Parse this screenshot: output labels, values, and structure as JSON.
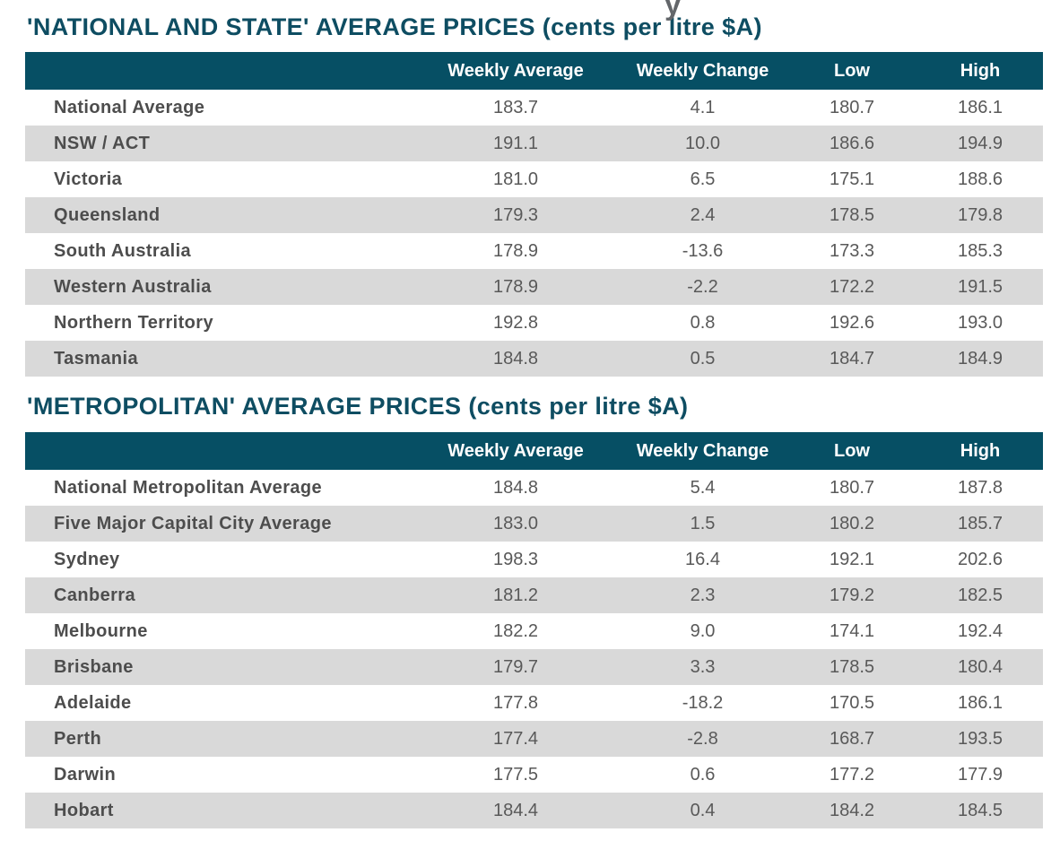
{
  "page": {
    "cut_off_text_fragment": "y"
  },
  "colors": {
    "header_bg": "#064F64",
    "title_text": "#0E4D62",
    "alt_row_bg": "#D9D9D9",
    "label_text": "#4D4D4D",
    "value_text": "#595959"
  },
  "chart_data": [
    {
      "type": "table",
      "title": "'NATIONAL AND STATE' AVERAGE PRICES (cents per litre $A)",
      "columns": [
        "",
        "Weekly Average",
        "Weekly Change",
        "Low",
        "High"
      ],
      "rows": [
        [
          "National Average",
          "183.7",
          "4.1",
          "180.7",
          "186.1"
        ],
        [
          "NSW / ACT",
          "191.1",
          "10.0",
          "186.6",
          "194.9"
        ],
        [
          "Victoria",
          "181.0",
          "6.5",
          "175.1",
          "188.6"
        ],
        [
          "Queensland",
          "179.3",
          "2.4",
          "178.5",
          "179.8"
        ],
        [
          "South Australia",
          "178.9",
          "-13.6",
          "173.3",
          "185.3"
        ],
        [
          "Western Australia",
          "178.9",
          "-2.2",
          "172.2",
          "191.5"
        ],
        [
          "Northern Territory",
          "192.8",
          "0.8",
          "192.6",
          "193.0"
        ],
        [
          "Tasmania",
          "184.8",
          "0.5",
          "184.7",
          "184.9"
        ]
      ]
    },
    {
      "type": "table",
      "title": "'METROPOLITAN' AVERAGE PRICES (cents per litre $A)",
      "columns": [
        "",
        "Weekly Average",
        "Weekly Change",
        "Low",
        "High"
      ],
      "rows": [
        [
          "National Metropolitan Average",
          "184.8",
          "5.4",
          "180.7",
          "187.8"
        ],
        [
          "Five Major Capital City Average",
          "183.0",
          "1.5",
          "180.2",
          "185.7"
        ],
        [
          "Sydney",
          "198.3",
          "16.4",
          "192.1",
          "202.6"
        ],
        [
          "Canberra",
          "181.2",
          "2.3",
          "179.2",
          "182.5"
        ],
        [
          "Melbourne",
          "182.2",
          "9.0",
          "174.1",
          "192.4"
        ],
        [
          "Brisbane",
          "179.7",
          "3.3",
          "178.5",
          "180.4"
        ],
        [
          "Adelaide",
          "177.8",
          "-18.2",
          "170.5",
          "186.1"
        ],
        [
          "Perth",
          "177.4",
          "-2.8",
          "168.7",
          "193.5"
        ],
        [
          "Darwin",
          "177.5",
          "0.6",
          "177.2",
          "177.9"
        ],
        [
          "Hobart",
          "184.4",
          "0.4",
          "184.2",
          "184.5"
        ]
      ]
    }
  ]
}
